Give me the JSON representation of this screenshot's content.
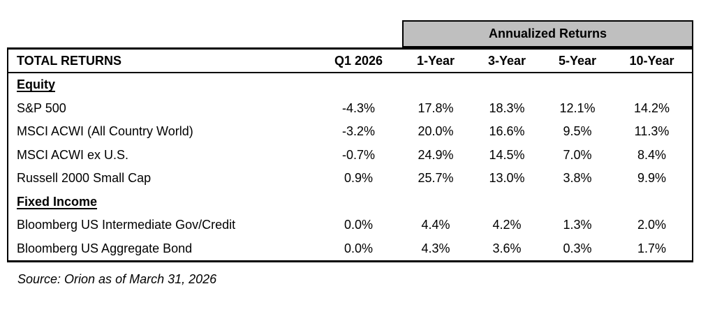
{
  "table": {
    "annualized_header": "Annualized Returns",
    "row_header_label": "TOTAL RETURNS",
    "columns": [
      "Q1 2026",
      "1-Year",
      "3-Year",
      "5-Year",
      "10-Year"
    ],
    "sections": [
      {
        "label": "Equity",
        "rows": [
          {
            "name": "S&P 500",
            "values": [
              "-4.3%",
              "17.8%",
              "18.3%",
              "12.1%",
              "14.2%"
            ]
          },
          {
            "name": "MSCI ACWI (All Country World)",
            "values": [
              "-3.2%",
              "20.0%",
              "16.6%",
              "9.5%",
              "11.3%"
            ]
          },
          {
            "name": "MSCI ACWI ex U.S.",
            "values": [
              "-0.7%",
              "24.9%",
              "14.5%",
              "7.0%",
              "8.4%"
            ]
          },
          {
            "name": "Russell 2000 Small Cap",
            "values": [
              "0.9%",
              "25.7%",
              "13.0%",
              "3.8%",
              "9.9%"
            ]
          }
        ]
      },
      {
        "label": "Fixed Income",
        "rows": [
          {
            "name": "Bloomberg US Intermediate Gov/Credit",
            "values": [
              "0.0%",
              "4.4%",
              "4.2%",
              "1.3%",
              "2.0%"
            ]
          },
          {
            "name": "Bloomberg US Aggregate Bond",
            "values": [
              "0.0%",
              "4.3%",
              "3.6%",
              "0.3%",
              "1.7%"
            ]
          }
        ]
      }
    ],
    "source": "Source: Orion as of March 31, 2026"
  },
  "colors": {
    "group_header_fill": "#BFBFBF",
    "border": "#000000",
    "text": "#000000",
    "background": "#FFFFFF"
  },
  "chart_data": {
    "type": "table",
    "title": "TOTAL RETURNS",
    "group_header": "Annualized Returns",
    "group_header_applies_to": [
      "1-Year",
      "3-Year",
      "5-Year",
      "10-Year"
    ],
    "columns": [
      "Q1 2026",
      "1-Year",
      "3-Year",
      "5-Year",
      "10-Year"
    ],
    "rows": [
      {
        "section": "Equity",
        "name": "S&P 500",
        "values_pct": [
          -4.3,
          17.8,
          18.3,
          12.1,
          14.2
        ]
      },
      {
        "section": "Equity",
        "name": "MSCI ACWI (All Country World)",
        "values_pct": [
          -3.2,
          20.0,
          16.6,
          9.5,
          11.3
        ]
      },
      {
        "section": "Equity",
        "name": "MSCI ACWI ex U.S.",
        "values_pct": [
          -0.7,
          24.9,
          14.5,
          7.0,
          8.4
        ]
      },
      {
        "section": "Equity",
        "name": "Russell 2000 Small Cap",
        "values_pct": [
          0.9,
          25.7,
          13.0,
          3.8,
          9.9
        ]
      },
      {
        "section": "Fixed Income",
        "name": "Bloomberg US Intermediate Gov/Credit",
        "values_pct": [
          0.0,
          4.4,
          4.2,
          1.3,
          2.0
        ]
      },
      {
        "section": "Fixed Income",
        "name": "Bloomberg US Aggregate Bond",
        "values_pct": [
          0.0,
          4.3,
          3.6,
          0.3,
          1.7
        ]
      }
    ],
    "source": "Source: Orion as of March 31, 2026"
  }
}
